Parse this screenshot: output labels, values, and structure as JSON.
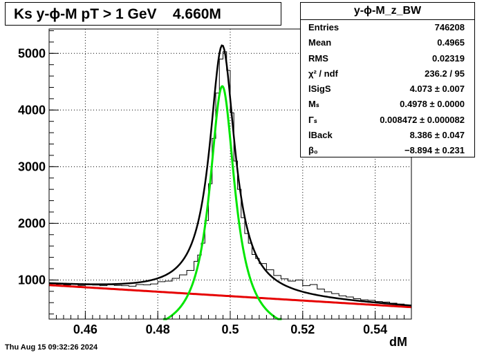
{
  "title": "Ks y-ϕ-M pT > 1 GeV    4.660M",
  "stats": {
    "name": "y-ϕ-M_z_BW",
    "rows": [
      {
        "label": "Entries",
        "value": "746208"
      },
      {
        "label": "Mean",
        "value": "0.4965"
      },
      {
        "label": "RMS",
        "value": "0.02319"
      },
      {
        "label": "χ² / ndf",
        "value": "236.2 / 95"
      },
      {
        "label": "lSigS",
        "value": "4.073 ± 0.007"
      },
      {
        "label": "Mₛ",
        "value": "0.4978 ± 0.0000"
      },
      {
        "label": "Γₛ",
        "value": "0.008472 ± 0.000082"
      },
      {
        "label": "lBack",
        "value": "8.386 ± 0.047"
      },
      {
        "label": "β₀",
        "value": "−8.894 ± 0.231"
      }
    ]
  },
  "timestamp": "Thu Aug 15 09:32:26 2024",
  "chart_data": {
    "type": "line",
    "xlabel": "dM",
    "ylabel": "",
    "xlim": [
      0.45,
      0.55
    ],
    "ylim": [
      310,
      5430
    ],
    "xticks": [
      0.46,
      0.48,
      0.5,
      0.52,
      0.54
    ],
    "xtick_labels": [
      "0.46",
      "0.48",
      "0.5",
      "0.52",
      "0.54"
    ],
    "yticks": [
      1000,
      2000,
      3000,
      4000,
      5000
    ],
    "ytick_labels": [
      "1000",
      "2000",
      "3000",
      "4000",
      "5000"
    ],
    "grid": true,
    "fit": {
      "signal_peak": 4420,
      "mass": 0.4978,
      "gamma": 0.008472,
      "background": [
        {
          "x": 0.45,
          "y": 910
        },
        {
          "x": 0.55,
          "y": 520
        }
      ]
    },
    "series": [
      {
        "name": "",
        "kind": "histogram",
        "color": "#000000",
        "x": [
          0.45,
          0.452,
          0.454,
          0.456,
          0.458,
          0.46,
          0.462,
          0.464,
          0.466,
          0.468,
          0.47,
          0.472,
          0.474,
          0.476,
          0.478,
          0.48,
          0.482,
          0.484,
          0.486,
          0.488,
          0.49,
          0.491,
          0.492,
          0.493,
          0.494,
          0.495,
          0.496,
          0.497,
          0.498,
          0.499,
          0.5,
          0.501,
          0.502,
          0.503,
          0.504,
          0.505,
          0.506,
          0.507,
          0.508,
          0.51,
          0.512,
          0.514,
          0.516,
          0.518,
          0.52,
          0.522,
          0.524,
          0.526,
          0.528,
          0.53,
          0.532,
          0.534,
          0.536,
          0.538,
          0.54,
          0.542,
          0.544,
          0.546,
          0.548
        ],
        "y": [
          935,
          925,
          915,
          930,
          905,
          915,
          910,
          900,
          915,
          905,
          900,
          890,
          920,
          915,
          930,
          970,
          980,
          1030,
          1090,
          1170,
          1330,
          1440,
          1650,
          2050,
          2700,
          3500,
          4300,
          4900,
          5030,
          4700,
          3950,
          3100,
          2600,
          2100,
          1820,
          1650,
          1450,
          1380,
          1290,
          1180,
          1080,
          1020,
          980,
          1000,
          900,
          920,
          840,
          790,
          760,
          720,
          700,
          670,
          650,
          640,
          620,
          610,
          590,
          575,
          560
        ]
      },
      {
        "name": "",
        "kind": "total-fit",
        "color": "#000000"
      },
      {
        "name": "",
        "kind": "signal-fit",
        "color": "#00e600"
      },
      {
        "name": "",
        "kind": "background-fit",
        "color": "#e60000"
      }
    ]
  }
}
